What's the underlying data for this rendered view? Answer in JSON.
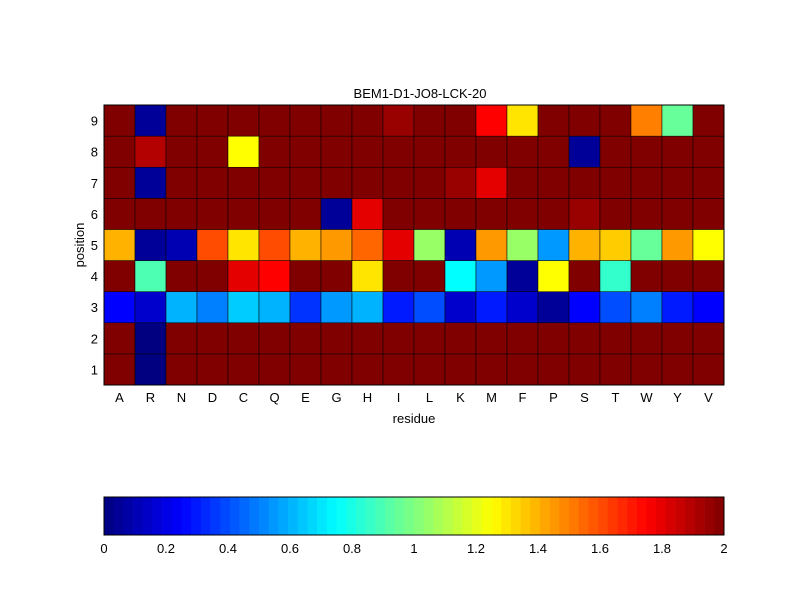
{
  "chart_data": {
    "type": "heatmap",
    "title": "BEM1-D1-JO8-LCK-20",
    "xlabel": "residue",
    "ylabel": "position",
    "x_categories": [
      "A",
      "R",
      "N",
      "D",
      "C",
      "Q",
      "E",
      "G",
      "H",
      "I",
      "L",
      "K",
      "M",
      "F",
      "P",
      "S",
      "T",
      "W",
      "Y",
      "V"
    ],
    "y_categories": [
      "1",
      "2",
      "3",
      "4",
      "5",
      "6",
      "7",
      "8",
      "9"
    ],
    "values": [
      [
        2,
        0,
        2,
        2,
        2,
        2,
        2,
        2,
        2,
        2,
        2,
        2,
        2,
        2,
        2,
        2,
        2,
        2,
        2,
        2
      ],
      [
        2,
        0,
        2,
        2,
        2,
        2,
        2,
        2,
        2,
        2,
        2,
        2,
        2,
        2,
        2,
        2,
        2,
        2,
        2,
        2
      ],
      [
        0.25,
        0.15,
        0.6,
        0.5,
        0.65,
        0.6,
        0.35,
        0.55,
        0.6,
        0.3,
        0.4,
        0.15,
        0.3,
        0.15,
        0.05,
        0.25,
        0.4,
        0.5,
        0.3,
        0.25
      ],
      [
        2,
        0.9,
        2,
        2,
        1.8,
        1.75,
        2,
        2,
        1.3,
        2,
        2,
        0.75,
        0.55,
        0.05,
        1.25,
        2,
        0.85,
        2,
        2,
        2
      ],
      [
        1.4,
        0.05,
        0.1,
        1.6,
        1.3,
        1.6,
        1.4,
        1.45,
        1.55,
        1.8,
        1.05,
        0.1,
        1.45,
        1.05,
        0.55,
        1.4,
        1.35,
        0.95,
        1.45,
        1.25
      ],
      [
        2,
        2,
        2,
        2,
        2,
        2,
        2,
        0.05,
        1.8,
        2,
        2,
        2,
        2,
        2,
        2,
        1.95,
        2,
        2,
        2,
        2
      ],
      [
        2,
        0.05,
        2,
        2,
        2,
        2,
        2,
        2,
        2,
        2,
        2,
        1.95,
        1.8,
        2,
        2,
        2,
        2,
        2,
        2,
        2
      ],
      [
        2,
        1.9,
        2,
        2,
        1.25,
        2,
        2,
        2,
        2,
        2,
        2,
        2,
        2,
        2,
        2,
        0.05,
        2,
        2,
        2,
        2
      ],
      [
        2,
        0.05,
        2,
        2,
        2,
        2,
        2,
        2,
        2,
        1.95,
        2,
        2,
        1.75,
        1.3,
        2,
        2,
        2,
        1.5,
        0.95,
        2
      ]
    ],
    "colormap": "jet",
    "clim": [
      0,
      2
    ],
    "colorbar": {
      "ticks": [
        0,
        0.2,
        0.4,
        0.6,
        0.8,
        1,
        1.2,
        1.4,
        1.6,
        1.8,
        2
      ],
      "tick_labels": [
        "0",
        "0.2",
        "0.4",
        "0.6",
        "0.8",
        "1",
        "1.2",
        "1.4",
        "1.6",
        "1.8",
        "2"
      ],
      "orientation": "horizontal"
    }
  }
}
